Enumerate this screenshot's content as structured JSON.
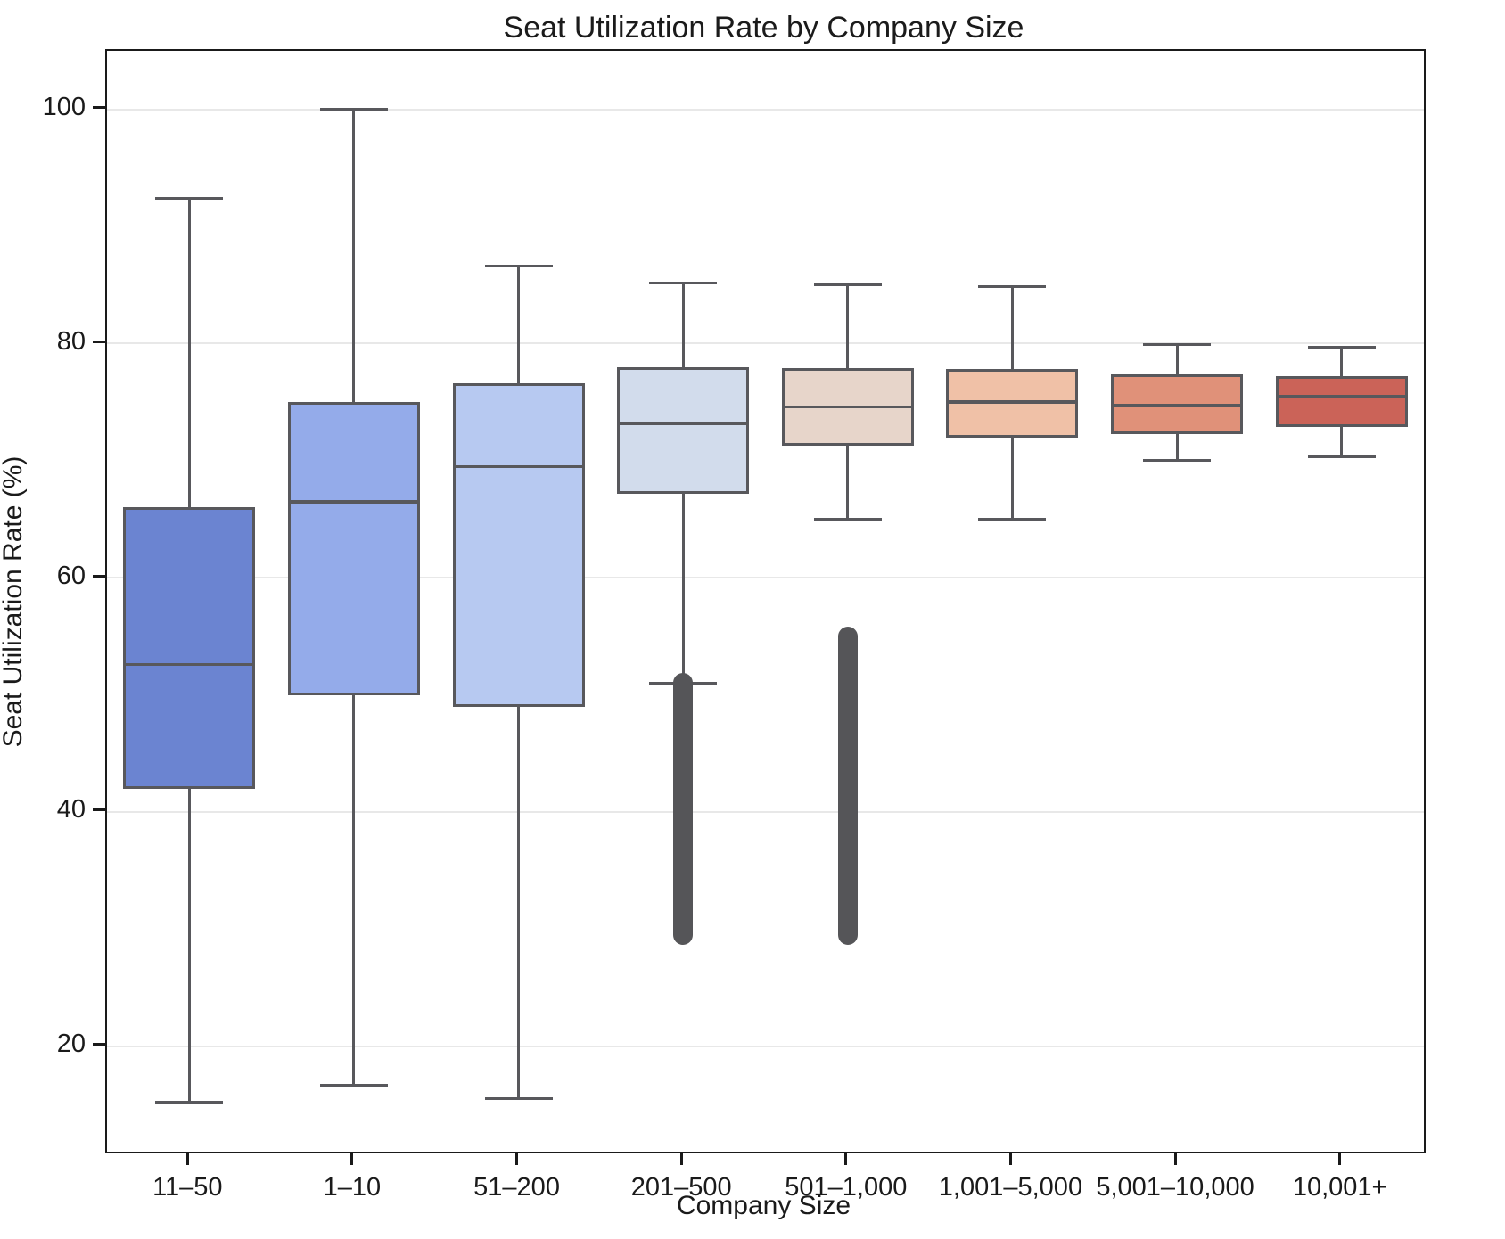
{
  "figure": {
    "title": "Seat Utilization Rate by Company Size",
    "xlabel": "Company Size",
    "ylabel": "Seat Utilization Rate (%)"
  },
  "colors": {
    "box_border": "#58585c",
    "whisker": "#58585c",
    "outlier": "#555558",
    "gridline": "#e8e8e8",
    "spine": "#1a1a1a",
    "text": "#1a1a1a",
    "background": "#ffffff"
  },
  "chart_data": {
    "type": "box",
    "title": "Seat Utilization Rate by Company Size",
    "xlabel": "Company Size",
    "ylabel": "Seat Utilization Rate (%)",
    "ylim": [
      11,
      105
    ],
    "yticks": [
      20,
      40,
      60,
      80,
      100
    ],
    "grid": "horizontal",
    "legend": "none",
    "categories": [
      "11–50",
      "1–10",
      "51–200",
      "201–500",
      "501–1,000",
      "1,001–5,000",
      "5,001–10,000",
      "10,001+"
    ],
    "series": [
      {
        "category": "11–50",
        "whisker_low": 15.2,
        "q1": 42.0,
        "median": 52.6,
        "q3": 66.0,
        "whisker_high": 92.4,
        "outliers_range": null,
        "color": "#6b84d1"
      },
      {
        "category": "1–10",
        "whisker_low": 16.7,
        "q1": 50.0,
        "median": 66.5,
        "q3": 75.0,
        "whisker_high": 100.0,
        "outliers_range": null,
        "color": "#94abea"
      },
      {
        "category": "51–200",
        "whisker_low": 15.5,
        "q1": 49.0,
        "median": 69.5,
        "q3": 76.6,
        "whisker_high": 86.6,
        "outliers_range": null,
        "color": "#b7c9f1"
      },
      {
        "category": "201–500",
        "whisker_low": 51.0,
        "q1": 67.2,
        "median": 73.2,
        "q3": 78.0,
        "whisker_high": 85.2,
        "outliers_range": [
          29.5,
          51.0
        ],
        "color": "#d2dcec"
      },
      {
        "category": "501–1,000",
        "whisker_low": 65.0,
        "q1": 71.3,
        "median": 74.6,
        "q3": 77.9,
        "whisker_high": 85.0,
        "outliers_range": [
          29.5,
          55.0
        ],
        "color": "#e7d5ca"
      },
      {
        "category": "1,001–5,000",
        "whisker_low": 65.0,
        "q1": 72.0,
        "median": 75.0,
        "q3": 77.8,
        "whisker_high": 84.9,
        "outliers_range": null,
        "color": "#f0c1a7"
      },
      {
        "category": "5,001–10,000",
        "whisker_low": 70.0,
        "q1": 72.3,
        "median": 74.7,
        "q3": 77.4,
        "whisker_high": 79.9,
        "outliers_range": null,
        "color": "#e09179"
      },
      {
        "category": "10,001+",
        "whisker_low": 70.3,
        "q1": 72.9,
        "median": 75.5,
        "q3": 77.2,
        "whisker_high": 79.7,
        "outliers_range": null,
        "color": "#cb6358"
      }
    ]
  }
}
